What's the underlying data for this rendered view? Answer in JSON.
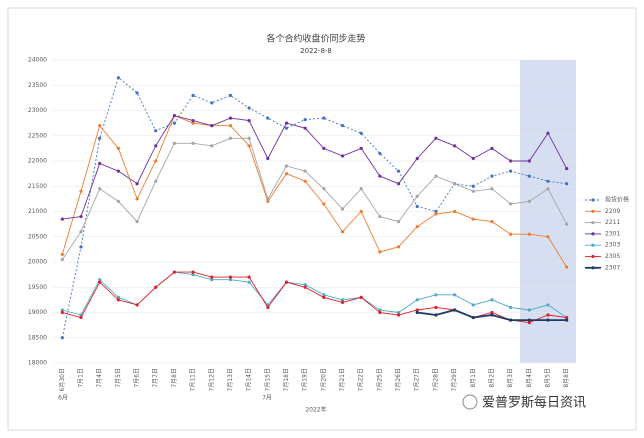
{
  "chart_data": {
    "type": "line",
    "title": "各个合约收盘价同步走势",
    "subtitle": "2022-8-8",
    "xlabel": "2022年",
    "x_groups": [
      "6月",
      "7月"
    ],
    "watermark": "爱普罗斯每日资讯",
    "categories": [
      "6月30日",
      "7月1日",
      "7月4日",
      "7月5日",
      "7月6日",
      "7月7日",
      "7月8日",
      "7月11日",
      "7月12日",
      "7月13日",
      "7月14日",
      "7月15日",
      "7月18日",
      "7月19日",
      "7月20日",
      "7月21日",
      "7月22日",
      "7月25日",
      "7月26日",
      "7月27日",
      "7月28日",
      "7月29日",
      "8月1日",
      "8月2日",
      "8月3日",
      "8月4日",
      "8月5日",
      "8月8日"
    ],
    "ylim": [
      18000,
      24000
    ],
    "yticks": [
      18000,
      18500,
      19000,
      19500,
      20000,
      20500,
      21000,
      21500,
      22000,
      22500,
      23000,
      23500,
      24000
    ],
    "grid": true,
    "legend": "right",
    "series": [
      {
        "name": "现货价格",
        "color": "#4472c4",
        "dashed": true,
        "values": [
          18500,
          20300,
          22450,
          23650,
          23350,
          22600,
          22750,
          23300,
          23150,
          23300,
          23050,
          22850,
          22650,
          22820,
          22850,
          22700,
          22550,
          22150,
          21800,
          21100,
          21000,
          21550,
          21500,
          21700,
          21800,
          21700,
          21600,
          21550
        ]
      },
      {
        "name": "2209",
        "color": "#ed7d31",
        "values": [
          20150,
          21400,
          22700,
          22250,
          21250,
          22000,
          22900,
          22750,
          22700,
          22700,
          22300,
          21200,
          21750,
          21600,
          21150,
          20600,
          21000,
          20200,
          20300,
          20700,
          20950,
          21000,
          20850,
          20800,
          20550,
          20550,
          20500,
          19900
        ]
      },
      {
        "name": "2211",
        "color": "#a5a5a5",
        "values": [
          20050,
          20600,
          21450,
          21200,
          20800,
          21600,
          22350,
          22350,
          22300,
          22450,
          22450,
          21250,
          21900,
          21800,
          21450,
          21050,
          21450,
          20900,
          20800,
          21300,
          21700,
          21550,
          21400,
          21450,
          21150,
          21200,
          21450,
          20750
        ]
      },
      {
        "name": "2301",
        "color": "#7030a0",
        "values": [
          20850,
          20900,
          21950,
          21800,
          21550,
          22300,
          22900,
          22800,
          22700,
          22850,
          22800,
          22050,
          22750,
          22650,
          22250,
          22100,
          22250,
          21700,
          21550,
          22050,
          22450,
          22300,
          22050,
          22250,
          22000,
          22000,
          22550,
          21850
        ]
      },
      {
        "name": "2303",
        "color": "#4bacc6",
        "values": [
          19050,
          18950,
          19650,
          19300,
          19150,
          19500,
          19800,
          19750,
          19650,
          19650,
          19600,
          19150,
          19600,
          19550,
          19350,
          19250,
          19300,
          19050,
          19000,
          19250,
          19350,
          19350,
          19150,
          19250,
          19100,
          19050,
          19150,
          18900
        ]
      },
      {
        "name": "2305",
        "color": "#e0202a",
        "values": [
          19000,
          18900,
          19600,
          19250,
          19150,
          19500,
          19800,
          19800,
          19700,
          19700,
          19700,
          19100,
          19600,
          19500,
          19300,
          19200,
          19300,
          19000,
          18950,
          19050,
          19100,
          19050,
          18900,
          19000,
          18850,
          18800,
          18950,
          18900
        ]
      },
      {
        "name": "2307",
        "color": "#1f3864",
        "thick": true,
        "values": [
          null,
          null,
          null,
          null,
          null,
          null,
          null,
          null,
          null,
          null,
          null,
          null,
          null,
          null,
          null,
          null,
          null,
          null,
          null,
          19000,
          18950,
          19050,
          18900,
          18950,
          18850,
          18850,
          18850,
          18850
        ]
      }
    ]
  }
}
